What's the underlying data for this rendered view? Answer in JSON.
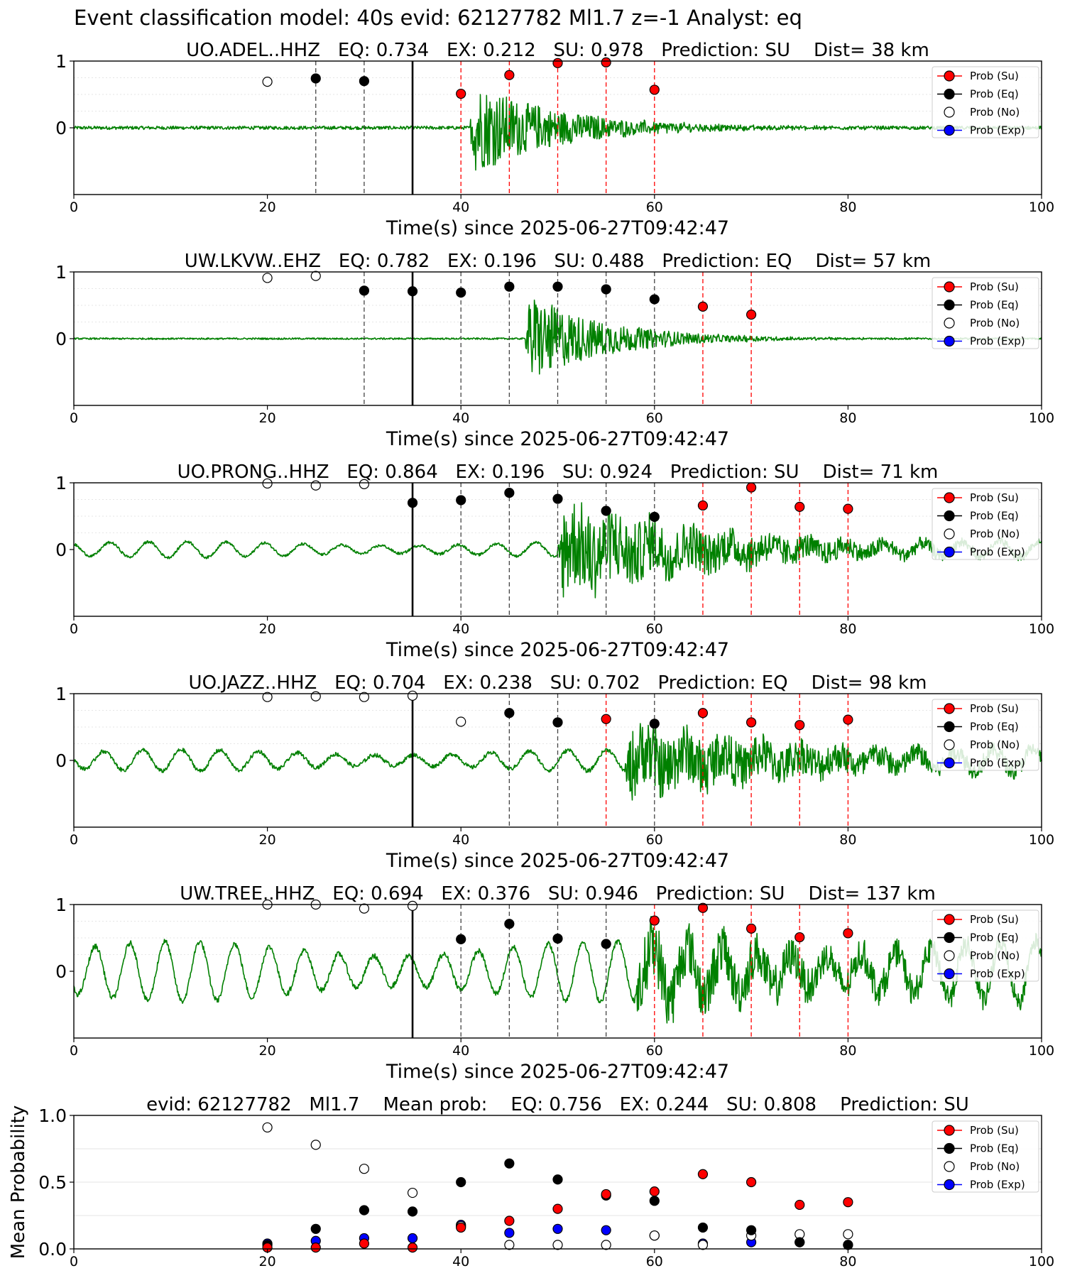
{
  "suptitle": "Event classification model: 40s evid: 62127782 Ml1.7 z=-1 Analyst: eq",
  "colors": {
    "trace": "#008000",
    "su": "#ff0000",
    "eq": "#000000",
    "no": "#ffffff",
    "exp": "#0000ff"
  },
  "legend": [
    "Prob (Su)",
    "Prob (Eq)",
    "Prob (No)",
    "Prob (Exp)"
  ],
  "chart_data": [
    {
      "type": "scatter",
      "title": "UO.ADEL..HHZ   EQ: 0.734   EX: 0.212   SU: 0.978   Prediction: SU    Dist= 38 km",
      "xlabel": "Time(s) since 2025-06-27T09:42:47",
      "ylabel": "",
      "xlim": [
        0,
        100
      ],
      "ylim": [
        -1,
        1
      ],
      "xticks": [
        "0",
        "20",
        "40",
        "60",
        "80",
        "100"
      ],
      "yticks": [
        "1",
        "0"
      ],
      "origin_time": 35,
      "signal": {
        "onset": 41,
        "end": 62,
        "noise": 0.025,
        "peak": 0.72,
        "osc_amp": 0,
        "osc_period": 5,
        "decay": 9
      },
      "series": [
        {
          "name": "Prob (Su)",
          "class": "su",
          "x": [
            40,
            45,
            50,
            55,
            60
          ],
          "y": [
            0.51,
            0.79,
            0.97,
            0.98,
            0.57
          ]
        },
        {
          "name": "Prob (Eq)",
          "class": "eq",
          "x": [
            25,
            30
          ],
          "y": [
            0.74,
            0.7
          ]
        },
        {
          "name": "Prob (No)",
          "class": "no",
          "x": [
            20
          ],
          "y": [
            0.69
          ]
        },
        {
          "name": "Prob (Exp)",
          "class": "exp",
          "x": [],
          "y": []
        }
      ],
      "legend_position": "top-right"
    },
    {
      "type": "scatter",
      "title": "UW.LKVW..EHZ   EQ: 0.782   EX: 0.196   SU: 0.488   Prediction: EQ    Dist= 57 km",
      "xlabel": "Time(s) since 2025-06-27T09:42:47",
      "ylabel": "",
      "xlim": [
        0,
        100
      ],
      "ylim": [
        -1,
        1
      ],
      "xticks": [
        "0",
        "20",
        "40",
        "60",
        "80",
        "100"
      ],
      "yticks": [
        "1",
        "0"
      ],
      "origin_time": 35,
      "signal": {
        "onset": 46.7,
        "end": 75,
        "noise": 0.012,
        "peak": 0.7,
        "osc_amp": 0,
        "osc_period": 5,
        "decay": 8
      },
      "series": [
        {
          "name": "Prob (Su)",
          "class": "su",
          "x": [
            65,
            70
          ],
          "y": [
            0.48,
            0.36
          ]
        },
        {
          "name": "Prob (Eq)",
          "class": "eq",
          "x": [
            30,
            35,
            40,
            45,
            50,
            55,
            60
          ],
          "y": [
            0.72,
            0.71,
            0.69,
            0.78,
            0.78,
            0.74,
            0.59
          ]
        },
        {
          "name": "Prob (No)",
          "class": "no",
          "x": [
            20,
            25
          ],
          "y": [
            0.91,
            0.94
          ]
        },
        {
          "name": "Prob (Exp)",
          "class": "exp",
          "x": [],
          "y": []
        }
      ],
      "legend_position": "top-right"
    },
    {
      "type": "scatter",
      "title": "UO.PRONG..HHZ   EQ: 0.864   EX: 0.196   SU: 0.924   Prediction: SU    Dist= 71 km",
      "xlabel": "Time(s) since 2025-06-27T09:42:47",
      "ylabel": "",
      "xlim": [
        0,
        100
      ],
      "ylim": [
        -1,
        1
      ],
      "xticks": [
        "0",
        "20",
        "40",
        "60",
        "80",
        "100"
      ],
      "yticks": [
        "1",
        "0"
      ],
      "origin_time": 35,
      "signal": {
        "onset": 50,
        "end": 88,
        "noise": 0.02,
        "peak": 0.75,
        "osc_amp": 0.12,
        "osc_period": 4,
        "decay": 18
      },
      "series": [
        {
          "name": "Prob (Su)",
          "class": "su",
          "x": [
            65,
            70,
            75,
            80
          ],
          "y": [
            0.66,
            0.93,
            0.64,
            0.61
          ]
        },
        {
          "name": "Prob (Eq)",
          "class": "eq",
          "x": [
            35,
            40,
            45,
            50,
            55,
            60
          ],
          "y": [
            0.7,
            0.74,
            0.85,
            0.76,
            0.58,
            0.49
          ]
        },
        {
          "name": "Prob (No)",
          "class": "no",
          "x": [
            20,
            25,
            30
          ],
          "y": [
            0.99,
            0.96,
            0.98
          ]
        },
        {
          "name": "Prob (Exp)",
          "class": "exp",
          "x": [],
          "y": []
        }
      ],
      "legend_position": "top-right"
    },
    {
      "type": "scatter",
      "title": "UO.JAZZ..HHZ   EQ: 0.704   EX: 0.238   SU: 0.702   Prediction: EQ    Dist= 98 km",
      "xlabel": "Time(s) since 2025-06-27T09:42:47",
      "ylabel": "",
      "xlim": [
        0,
        100
      ],
      "ylim": [
        -1,
        1
      ],
      "xticks": [
        "0",
        "20",
        "40",
        "60",
        "80",
        "100"
      ],
      "yticks": [
        "1",
        "0"
      ],
      "origin_time": 35,
      "signal": {
        "onset": 57,
        "end": 90,
        "noise": 0.03,
        "peak": 0.55,
        "osc_amp": 0.16,
        "osc_period": 4,
        "decay": 25
      },
      "series": [
        {
          "name": "Prob (Su)",
          "class": "su",
          "x": [
            55,
            65,
            70,
            75,
            80
          ],
          "y": [
            0.62,
            0.71,
            0.57,
            0.53,
            0.61
          ]
        },
        {
          "name": "Prob (Eq)",
          "class": "eq",
          "x": [
            45,
            50,
            60
          ],
          "y": [
            0.71,
            0.57,
            0.55
          ]
        },
        {
          "name": "Prob (No)",
          "class": "no",
          "x": [
            20,
            25,
            30,
            35,
            40
          ],
          "y": [
            0.95,
            0.96,
            0.95,
            0.97,
            0.58
          ]
        },
        {
          "name": "Prob (Exp)",
          "class": "exp",
          "x": [],
          "y": []
        }
      ],
      "legend_position": "top-right"
    },
    {
      "type": "scatter",
      "title": "UW.TREE..HHZ   EQ: 0.694   EX: 0.376   SU: 0.946   Prediction: SU    Dist= 137 km",
      "xlabel": "Time(s) since 2025-06-27T09:42:47",
      "ylabel": "",
      "xlim": [
        0,
        100
      ],
      "ylim": [
        -1,
        1
      ],
      "xticks": [
        "0",
        "20",
        "40",
        "60",
        "80",
        "100"
      ],
      "yticks": [
        "1",
        "0"
      ],
      "origin_time": 35,
      "signal": {
        "onset": 58,
        "end": 92,
        "noise": 0.04,
        "peak": 0.5,
        "osc_amp": 0.45,
        "osc_period": 3.6,
        "decay": 30
      },
      "series": [
        {
          "name": "Prob (Su)",
          "class": "su",
          "x": [
            60,
            65,
            70,
            75,
            80
          ],
          "y": [
            0.76,
            0.95,
            0.64,
            0.51,
            0.57
          ]
        },
        {
          "name": "Prob (Eq)",
          "class": "eq",
          "x": [
            40,
            45,
            50,
            55
          ],
          "y": [
            0.48,
            0.71,
            0.49,
            0.41
          ]
        },
        {
          "name": "Prob (No)",
          "class": "no",
          "x": [
            20,
            25,
            30,
            35
          ],
          "y": [
            1.0,
            1.0,
            0.94,
            0.98
          ]
        },
        {
          "name": "Prob (Exp)",
          "class": "exp",
          "x": [],
          "y": []
        }
      ],
      "legend_position": "top-right"
    },
    {
      "type": "scatter",
      "title": "evid: 62127782   Ml1.7    Mean prob:    EQ: 0.756   EX: 0.244   SU: 0.808    Prediction: SU",
      "xlabel": "",
      "ylabel": "Mean Probability",
      "xlim": [
        0,
        100
      ],
      "ylim": [
        0,
        1
      ],
      "xticks": [
        "0",
        "20",
        "40",
        "60",
        "80",
        "100"
      ],
      "yticks": [
        "1.0",
        "0.5",
        "0.0"
      ],
      "series": [
        {
          "name": "Prob (Su)",
          "class": "su",
          "x": [
            20,
            25,
            30,
            35,
            40,
            45,
            50,
            55,
            60,
            65,
            70,
            75,
            80
          ],
          "y": [
            0.01,
            0.01,
            0.04,
            0.01,
            0.16,
            0.21,
            0.3,
            0.41,
            0.43,
            0.56,
            0.5,
            0.33,
            0.35
          ]
        },
        {
          "name": "Prob (Eq)",
          "class": "eq",
          "x": [
            20,
            25,
            30,
            35,
            40,
            45,
            50,
            55,
            60,
            65,
            70,
            75,
            80
          ],
          "y": [
            0.03,
            0.15,
            0.29,
            0.28,
            0.5,
            0.64,
            0.52,
            0.4,
            0.36,
            0.16,
            0.14,
            0.05,
            0.03
          ]
        },
        {
          "name": "Prob (No)",
          "class": "no",
          "x": [
            20,
            25,
            30,
            35,
            40,
            45,
            50,
            55,
            60,
            65,
            70,
            75,
            80
          ],
          "y": [
            0.91,
            0.78,
            0.6,
            0.42,
            0.17,
            0.03,
            0.03,
            0.03,
            0.1,
            0.03,
            0.1,
            0.11,
            0.11
          ]
        },
        {
          "name": "Prob (Exp)",
          "class": "exp",
          "x": [
            20,
            25,
            30,
            35,
            40,
            45,
            50,
            55,
            60,
            65,
            70,
            75,
            80
          ],
          "y": [
            0.04,
            0.06,
            0.08,
            0.08,
            0.18,
            0.12,
            0.15,
            0.14,
            0.1,
            0.04,
            0.05,
            0.05,
            0.03
          ]
        }
      ],
      "legend_position": "top-right"
    }
  ]
}
